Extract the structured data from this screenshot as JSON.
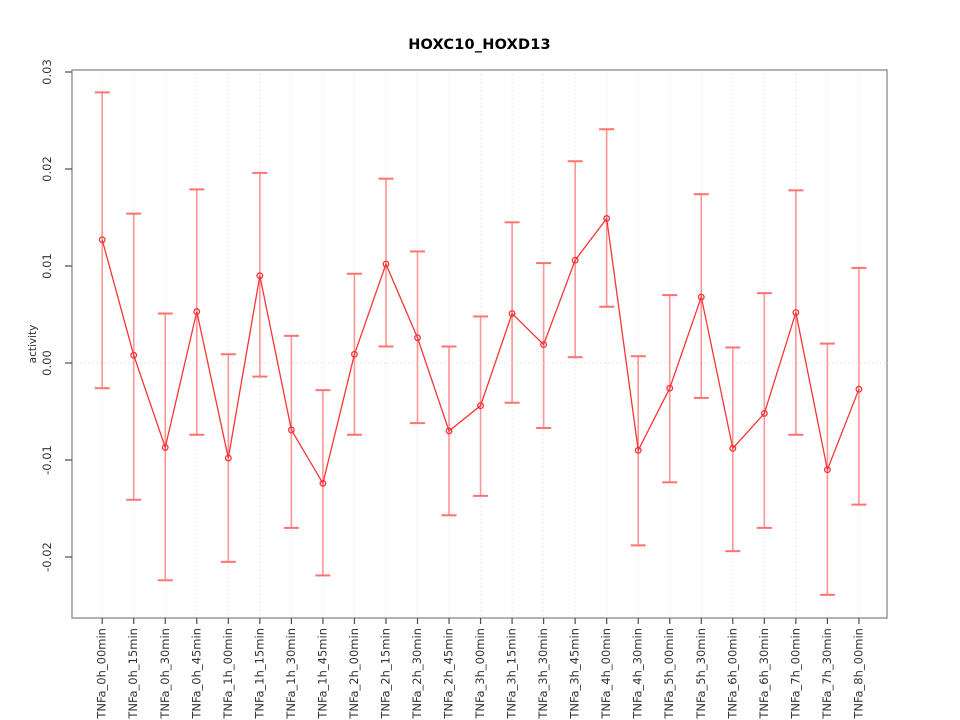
{
  "chart_data": {
    "type": "line",
    "title": "HOXC10_HOXD13",
    "xlabel": "",
    "ylabel": "activity",
    "legend": "none",
    "grid": "vertical dotted gridline at each category; horizontal dotted line at y=0",
    "marker": "open-circle",
    "error_bars": true,
    "ylim": [
      -0.0263,
      0.0302
    ],
    "yticks": [
      "0.03",
      "0.02",
      "0.01",
      "0.00",
      "-0.01",
      "-0.02"
    ],
    "categories": [
      "TNFa_0h_00min",
      "TNFa_0h_15min",
      "TNFa_0h_30min",
      "TNFa_0h_45min",
      "TNFa_1h_00min",
      "TNFa_1h_15min",
      "TNFa_1h_30min",
      "TNFa_1h_45min",
      "TNFa_2h_00min",
      "TNFa_2h_15min",
      "TNFa_2h_30min",
      "TNFa_2h_45min",
      "TNFa_3h_00min",
      "TNFa_3h_15min",
      "TNFa_3h_30min",
      "TNFa_3h_45min",
      "TNFa_4h_00min",
      "TNFa_4h_30min",
      "TNFa_5h_00min",
      "TNFa_5h_30min",
      "TNFa_6h_00min",
      "TNFa_6h_30min",
      "TNFa_7h_00min",
      "TNFa_7h_30min",
      "TNFa_8h_00min"
    ],
    "series": [
      {
        "name": "HOXC10_HOXD13 activity",
        "values": [
          0.0127,
          0.0008,
          -0.0087,
          0.0053,
          -0.0098,
          0.009,
          -0.0069,
          -0.0124,
          0.0009,
          0.0102,
          0.0026,
          -0.007,
          -0.0044,
          0.0051,
          0.0019,
          0.0106,
          0.0149,
          -0.009,
          -0.0026,
          0.0068,
          -0.0088,
          -0.0052,
          0.0052,
          -0.011,
          -0.0027
        ],
        "err_hi": [
          0.0279,
          0.0154,
          0.0051,
          0.0179,
          0.0009,
          0.0196,
          0.0028,
          -0.0028,
          0.0092,
          0.019,
          0.0115,
          0.0017,
          0.0048,
          0.0145,
          0.0103,
          0.0208,
          0.0241,
          0.0007,
          0.007,
          0.0174,
          0.0016,
          0.0072,
          0.0178,
          0.002,
          0.0098
        ],
        "err_lo": [
          -0.0026,
          -0.0141,
          -0.0224,
          -0.0074,
          -0.0205,
          -0.0014,
          -0.017,
          -0.0219,
          -0.0074,
          0.0017,
          -0.0062,
          -0.0157,
          -0.0137,
          -0.0041,
          -0.0067,
          0.0006,
          0.0058,
          -0.0188,
          -0.0123,
          -0.0036,
          -0.0194,
          -0.017,
          -0.0074,
          -0.0239,
          -0.0146
        ]
      }
    ],
    "colors": {
      "series_line": "#f63538",
      "marker_stroke": "#f63538",
      "errorbar_stem": "#ff9595",
      "errorbar_cap": "#ff7272",
      "gridline": "#d8d8d8",
      "box": "#808080",
      "tick": "#4d4d4d",
      "tick_label": "#333333",
      "title": "#000000",
      "background": "#ffffff"
    }
  }
}
